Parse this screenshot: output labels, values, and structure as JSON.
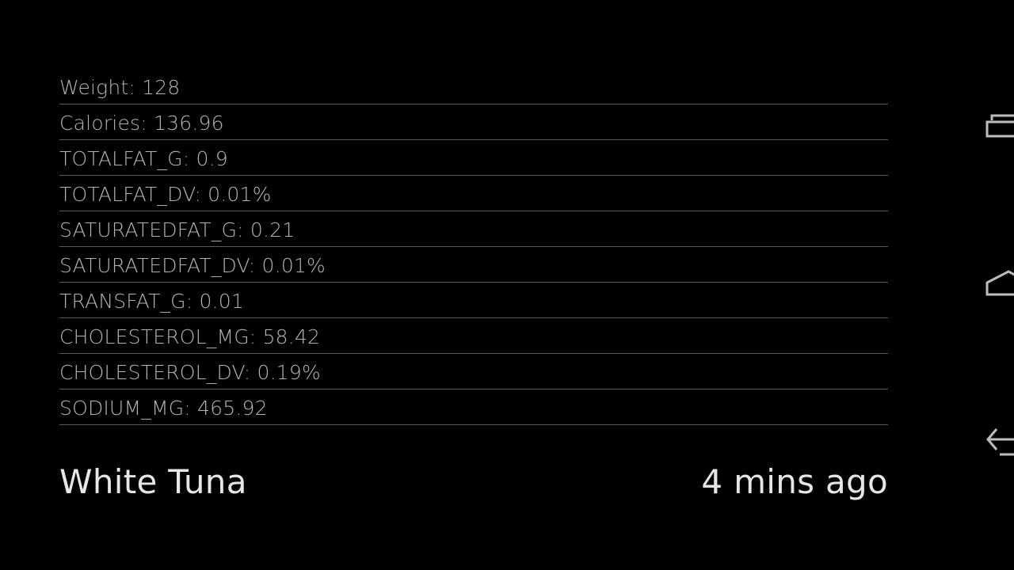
{
  "nutrients": [
    {
      "text": "Weight: 128"
    },
    {
      "text": "Calories: 136.96"
    },
    {
      "text": "TOTALFAT_G: 0.9"
    },
    {
      "text": "TOTALFAT_DV: 0.01%"
    },
    {
      "text": "SATURATEDFAT_G: 0.21"
    },
    {
      "text": "SATURATEDFAT_DV: 0.01%"
    },
    {
      "text": "TRANSFAT_G: 0.01"
    },
    {
      "text": "CHOLESTEROL_MG: 58.42"
    },
    {
      "text": "CHOLESTEROL_DV: 0.19%"
    },
    {
      "text": "SODIUM_MG: 465.92"
    }
  ],
  "footer": {
    "food_name": "White Tuna",
    "timestamp": "4 mins ago"
  },
  "nav_bar": {
    "recent_apps_icon": "recent-apps-icon",
    "home_icon": "home-icon",
    "back_icon": "back-icon",
    "icon_color": "#bdbdbd"
  },
  "colors": {
    "background": "#000000",
    "text_secondary": "#b4b4b4",
    "text_primary": "#e6e6e6",
    "divider": "#5a5a5a"
  }
}
